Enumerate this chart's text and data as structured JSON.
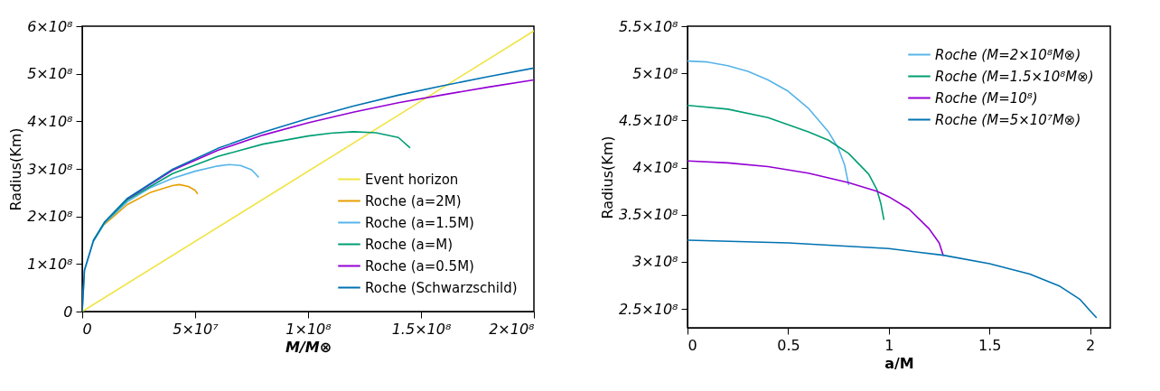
{
  "chart_data": [
    {
      "type": "line",
      "xlabel": "M/M⊗",
      "ylabel": "Radius(Km)",
      "xlim": [
        0,
        200000000.0
      ],
      "ylim": [
        0,
        600000000.0
      ],
      "xticks": [
        0,
        {
          "value": 50000000.0,
          "label": "5×10⁷"
        },
        {
          "value": 100000000.0,
          "label": "1×10⁸"
        },
        {
          "value": 150000000.0,
          "label": "1.5×10⁸"
        },
        {
          "value": 200000000.0,
          "label": "2×10⁸"
        }
      ],
      "yticks": [
        0,
        {
          "value": 100000000.0,
          "label": "1×10⁸"
        },
        {
          "value": 200000000.0,
          "label": "2×10⁸"
        },
        {
          "value": 300000000.0,
          "label": "3×10⁸"
        },
        {
          "value": 400000000.0,
          "label": "4×10⁸"
        },
        {
          "value": 500000000.0,
          "label": "5×10⁸"
        },
        {
          "value": 600000000.0,
          "label": "6×10⁸"
        }
      ],
      "grid": false,
      "legend": "bottom right",
      "line_style": "solid",
      "marker": "none",
      "series": [
        {
          "name": "Event horizon",
          "color": "#f0e442",
          "x": [
            0,
            200000000.0
          ],
          "values": [
            0,
            590000000.0
          ]
        },
        {
          "name": "Roche (a=2M)",
          "color": "#e69f00",
          "x": [
            10000000.0,
            20000000.0,
            30000000.0,
            40000000.0,
            43000000.0,
            47000000.0,
            50000000.0,
            51000000.0
          ],
          "values": [
            184000000.0,
            225000000.0,
            250000000.0,
            265000000.0,
            267000000.0,
            263000000.0,
            255000000.0,
            248000000.0
          ]
        },
        {
          "name": "Roche (a=1.5M)",
          "color": "#56b4e9",
          "x": [
            0,
            1000000.0,
            5000000.0,
            10000000.0,
            20000000.0,
            30000000.0,
            40000000.0,
            50000000.0,
            60000000.0,
            65000000.0,
            70000000.0,
            75000000.0,
            78000000.0
          ],
          "values": [
            0,
            87000000.0,
            148000000.0,
            186000000.0,
            231000000.0,
            260000000.0,
            280000000.0,
            295000000.0,
            306000000.0,
            309000000.0,
            307000000.0,
            298000000.0,
            283000000.0
          ]
        },
        {
          "name": "Roche (a=M)",
          "color": "#009e73",
          "x": [
            5000000.0,
            10000000.0,
            20000000.0,
            40000000.0,
            60000000.0,
            80000000.0,
            100000000.0,
            110000000.0,
            120000000.0,
            130000000.0,
            140000000.0,
            145000000.0
          ],
          "values": [
            149000000.0,
            188000000.0,
            235000000.0,
            290000000.0,
            326000000.0,
            352000000.0,
            369000000.0,
            375000000.0,
            378000000.0,
            376000000.0,
            366000000.0,
            345000000.0
          ]
        },
        {
          "name": "Roche (a=0.5M)",
          "color": "#9400d3",
          "x": [
            20000000.0,
            40000000.0,
            60000000.0,
            80000000.0,
            100000000.0,
            120000000.0,
            140000000.0,
            160000000.0,
            180000000.0,
            200000000.0
          ],
          "values": [
            237000000.0,
            297000000.0,
            339000000.0,
            371000000.0,
            397000000.0,
            419000000.0,
            439000000.0,
            456000000.0,
            472000000.0,
            487000000.0
          ]
        },
        {
          "name": "Roche (Schwarzschild)",
          "color": "#0072b2",
          "x": [
            0,
            1000000.0,
            5000000.0,
            10000000.0,
            20000000.0,
            40000000.0,
            60000000.0,
            80000000.0,
            100000000.0,
            120000000.0,
            140000000.0,
            160000000.0,
            180000000.0,
            200000000.0
          ],
          "values": [
            0,
            87000000.0,
            150000000.0,
            189000000.0,
            238000000.0,
            299000000.0,
            343000000.0,
            377000000.0,
            406000000.0,
            432000000.0,
            455000000.0,
            475000000.0,
            494000000.0,
            512000000.0
          ]
        }
      ]
    },
    {
      "type": "line",
      "xlabel": "a/M",
      "ylabel": "Radius(Km)",
      "xlim": [
        0,
        2.1
      ],
      "ylim": [
        230000000.0,
        550000000.0
      ],
      "xticks": [
        0,
        0.5,
        1,
        1.5,
        2
      ],
      "yticks": [
        {
          "value": 250000000.0,
          "label": "2.5×10⁸"
        },
        {
          "value": 300000000.0,
          "label": "3×10⁸"
        },
        {
          "value": 350000000.0,
          "label": "3.5×10⁸"
        },
        {
          "value": 400000000.0,
          "label": "4×10⁸"
        },
        {
          "value": 450000000.0,
          "label": "4.5×10⁸"
        },
        {
          "value": 500000000.0,
          "label": "5×10⁸"
        },
        {
          "value": 550000000.0,
          "label": "5.5×10⁸"
        }
      ],
      "grid": false,
      "legend": "top right",
      "line_style": "solid",
      "marker": "none",
      "series": [
        {
          "name": "Roche (M=2×10⁸M⊗)",
          "color": "#56b4e9",
          "x": [
            0,
            0.1,
            0.2,
            0.3,
            0.4,
            0.5,
            0.6,
            0.7,
            0.75,
            0.78,
            0.8
          ],
          "values": [
            513000000.0,
            512000000.0,
            508000000.0,
            502000000.0,
            493000000.0,
            481000000.0,
            463000000.0,
            438000000.0,
            420000000.0,
            403000000.0,
            382000000.0
          ]
        },
        {
          "name": "Roche (M=1.5×10⁸M⊗)",
          "color": "#009e73",
          "x": [
            0,
            0.2,
            0.4,
            0.6,
            0.7,
            0.8,
            0.9,
            0.94,
            0.96,
            0.975
          ],
          "values": [
            466000000.0,
            462000000.0,
            453000000.0,
            438000000.0,
            429000000.0,
            415000000.0,
            393000000.0,
            377000000.0,
            362000000.0,
            345000000.0
          ]
        },
        {
          "name": "Roche (M=10⁸)",
          "color": "#9400d3",
          "x": [
            0,
            0.2,
            0.4,
            0.6,
            0.8,
            0.94,
            1.0,
            1.1,
            1.2,
            1.25,
            1.27
          ],
          "values": [
            407000000.0,
            405000000.0,
            401000000.0,
            394000000.0,
            384000000.0,
            375000000.0,
            369000000.0,
            356000000.0,
            335000000.0,
            320000000.0,
            307000000.0
          ]
        },
        {
          "name": "Roche (M=5×10⁷M⊗)",
          "color": "#0072b2",
          "x": [
            0,
            0.5,
            1.0,
            1.27,
            1.5,
            1.7,
            1.85,
            1.95,
            2.0,
            2.03
          ],
          "values": [
            323000000.0,
            320000000.0,
            314000000.0,
            307000000.0,
            298000000.0,
            287000000.0,
            274000000.0,
            260000000.0,
            248000000.0,
            241000000.0
          ]
        }
      ]
    }
  ]
}
